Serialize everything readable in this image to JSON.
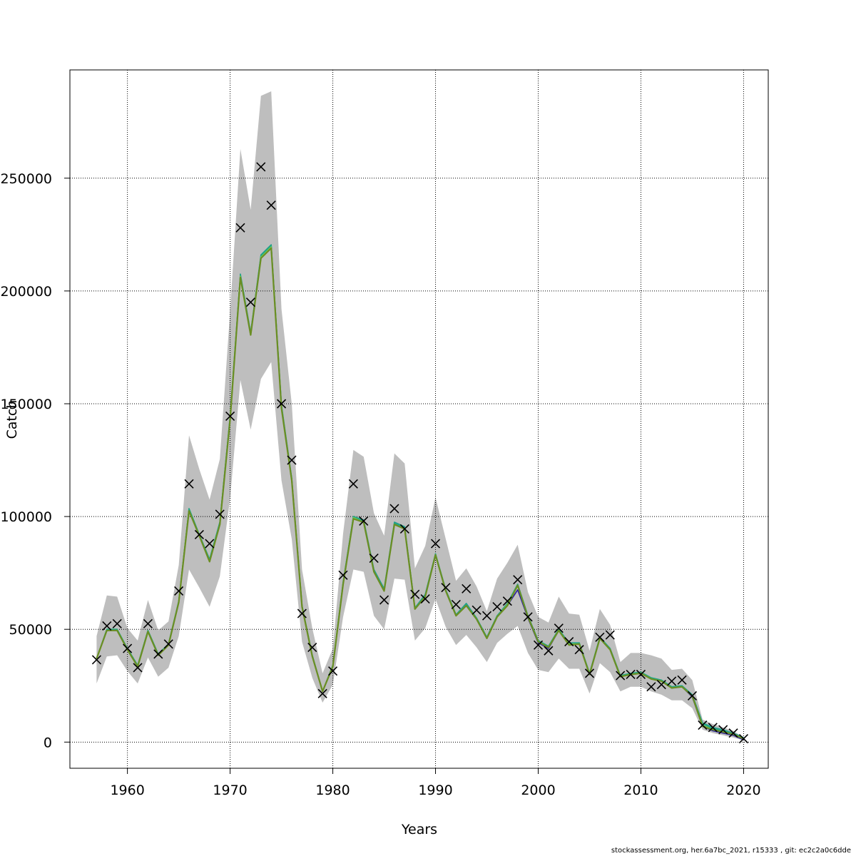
{
  "chart_data": {
    "type": "line",
    "title": "",
    "xlabel": "Years",
    "ylabel": "Catch",
    "xlim": [
      1954.4,
      2022.4
    ],
    "ylim": [
      -11600,
      298000
    ],
    "xticks": [
      1960,
      1970,
      1980,
      1990,
      2000,
      2010,
      2020
    ],
    "yticks": [
      0,
      50000,
      100000,
      150000,
      200000,
      250000
    ],
    "grid": true,
    "legend": "none",
    "colors": {
      "band": "#bebebe",
      "grid": "#000000",
      "line_main": "#6b8e23",
      "line_2": "#1f9e89",
      "line_3": "#2b1ea0",
      "line_4": "#22a884",
      "line_5": "#7ad151",
      "marker": "#000000"
    },
    "x": [
      1957,
      1958,
      1959,
      1960,
      1961,
      1962,
      1963,
      1964,
      1965,
      1966,
      1967,
      1968,
      1969,
      1970,
      1971,
      1972,
      1973,
      1974,
      1975,
      1976,
      1977,
      1978,
      1979,
      1980,
      1981,
      1982,
      1983,
      1984,
      1985,
      1986,
      1987,
      1988,
      1989,
      1990,
      1991,
      1992,
      1993,
      1994,
      1995,
      1996,
      1997,
      1998,
      1999,
      2000,
      2001,
      2002,
      2003,
      2004,
      2005,
      2006,
      2007,
      2008,
      2009,
      2010,
      2011,
      2012,
      2013,
      2014,
      2015,
      2016,
      2017,
      2018,
      2019,
      2020
    ],
    "observed": [
      36500,
      51500,
      52500,
      41500,
      33000,
      52500,
      39000,
      43500,
      67000,
      114500,
      92000,
      88000,
      101000,
      144500,
      228000,
      195000,
      255000,
      238000,
      150000,
      125000,
      57000,
      42000,
      21500,
      31500,
      74000,
      114500,
      98000,
      81500,
      63000,
      103500,
      94500,
      65500,
      63500,
      88000,
      68500,
      61000,
      68000,
      58500,
      56000,
      60000,
      62500,
      72000,
      55500,
      43000,
      40500,
      50500,
      44500,
      41000,
      30500,
      46500,
      47500,
      29500,
      30000,
      30000,
      24500,
      25500,
      27000,
      27500,
      20500,
      7500,
      6500,
      5500,
      4000,
      1500
    ],
    "series": [
      {
        "values": [
          37000,
          49500,
          49500,
          41000,
          33500,
          49000,
          38500,
          43000,
          62000,
          102500,
          91500,
          80000,
          96500,
          143000,
          206000,
          180500,
          214500,
          219000,
          148000,
          116000,
          60000,
          38000,
          22500,
          33500,
          70000,
          99000,
          97500,
          75500,
          67000,
          96500,
          94500,
          59000,
          64500,
          83000,
          67000,
          56000,
          60500,
          54500,
          46000,
          55500,
          60500,
          69500,
          55500,
          44500,
          42000,
          49500,
          43000,
          43500,
          30000,
          46000,
          41000,
          29000,
          30000,
          30500,
          28000,
          27000,
          24000,
          24500,
          20500,
          7000,
          5500,
          4500,
          3500,
          1500
        ]
      },
      {
        "values": [
          37000,
          50000,
          50000,
          41500,
          34000,
          49500,
          39000,
          43500,
          62500,
          103500,
          92000,
          81000,
          97500,
          144500,
          207500,
          181500,
          216000,
          220500,
          149500,
          117000,
          60500,
          38500,
          22500,
          34000,
          71000,
          100000,
          98500,
          76500,
          68000,
          97500,
          95500,
          59500,
          65500,
          83500,
          67500,
          56500,
          61500,
          55000,
          46500,
          56000,
          61500,
          70000,
          56000,
          45000,
          42500,
          50000,
          44000,
          44000,
          30500,
          46500,
          41500,
          29500,
          30500,
          31000,
          28500,
          27500,
          24500,
          25000,
          21000,
          8500,
          6500,
          5500,
          4000,
          2000
        ]
      },
      {
        "values": [
          37000,
          49500,
          49500,
          41000,
          33500,
          49000,
          38500,
          43000,
          62000,
          102500,
          91500,
          80000,
          96500,
          143000,
          206500,
          180500,
          214500,
          219500,
          148000,
          116000,
          60000,
          38000,
          22500,
          33500,
          70000,
          99500,
          97500,
          75500,
          67000,
          96500,
          94500,
          59000,
          64500,
          83000,
          67000,
          56000,
          60500,
          54500,
          46000,
          55500,
          60500,
          67500,
          55000,
          44000,
          41500,
          49500,
          43000,
          43500,
          30000,
          46000,
          41000,
          29000,
          30000,
          30500,
          28000,
          27000,
          24000,
          24500,
          20000,
          7000,
          5000,
          4000,
          3000,
          1000
        ]
      },
      {
        "values": [
          37000,
          50000,
          50000,
          41500,
          34000,
          49500,
          39000,
          43500,
          62500,
          103500,
          92000,
          81000,
          97500,
          144000,
          207000,
          181000,
          215500,
          220000,
          149000,
          116500,
          60500,
          38500,
          22500,
          34000,
          70500,
          100000,
          98000,
          76000,
          67500,
          97000,
          95000,
          59500,
          65000,
          83500,
          67500,
          56500,
          61000,
          55000,
          46500,
          56000,
          61000,
          70000,
          56000,
          45000,
          42500,
          50000,
          43500,
          44000,
          30500,
          46500,
          41500,
          29500,
          30500,
          31000,
          28500,
          27500,
          24500,
          25000,
          20500,
          8000,
          6000,
          5000,
          3500,
          1500
        ]
      },
      {
        "values": [
          37000,
          49500,
          49500,
          41000,
          33500,
          49000,
          38500,
          43000,
          62000,
          102500,
          91500,
          80000,
          96500,
          143500,
          206500,
          180500,
          215000,
          219500,
          148500,
          116000,
          60000,
          38000,
          22500,
          33500,
          70000,
          99500,
          97500,
          75500,
          67000,
          96500,
          94500,
          59000,
          64500,
          83000,
          67000,
          56000,
          60500,
          54500,
          46000,
          55500,
          61000,
          69500,
          55500,
          44500,
          42000,
          49500,
          43500,
          43500,
          30000,
          46000,
          41000,
          29000,
          30000,
          30500,
          28000,
          27000,
          24000,
          24500,
          20500,
          7500,
          5500,
          4500,
          3500,
          1500
        ]
      }
    ],
    "band_upper": [
      47000,
      65000,
      64500,
      50500,
      45000,
      63000,
      49500,
      53500,
      78500,
      136000,
      121000,
      107500,
      125500,
      191000,
      263000,
      236000,
      286500,
      288500,
      192000,
      150000,
      76500,
      50500,
      30500,
      41500,
      92500,
      129500,
      126500,
      101500,
      91500,
      128000,
      123500,
      77000,
      87000,
      108500,
      90000,
      71500,
      77000,
      69000,
      58000,
      72500,
      79500,
      87500,
      66500,
      55500,
      53000,
      64500,
      57000,
      56500,
      40500,
      59000,
      52000,
      35500,
      39500,
      39500,
      38500,
      37000,
      32000,
      32500,
      27500,
      10000,
      8000,
      6500,
      5000,
      2000
    ],
    "band_lower": [
      26000,
      38000,
      38500,
      31500,
      26000,
      37500,
      29000,
      33000,
      47000,
      76500,
      68500,
      60000,
      73500,
      108000,
      160500,
      138500,
      161000,
      168500,
      116000,
      90000,
      44500,
      28500,
      17500,
      25500,
      55500,
      76500,
      75500,
      56000,
      50000,
      72500,
      72000,
      45000,
      50500,
      63500,
      51000,
      43000,
      47500,
      42000,
      35500,
      44000,
      48000,
      51500,
      39500,
      32000,
      31000,
      37000,
      32500,
      32500,
      21500,
      35000,
      31000,
      22500,
      24500,
      24500,
      22500,
      21000,
      18500,
      18500,
      15000,
      5500,
      4000,
      3000,
      2000,
      800
    ]
  },
  "footer": "stockassessment.org, her.6a7bc_2021, r15333 , git: ec2c2a0c6dde"
}
